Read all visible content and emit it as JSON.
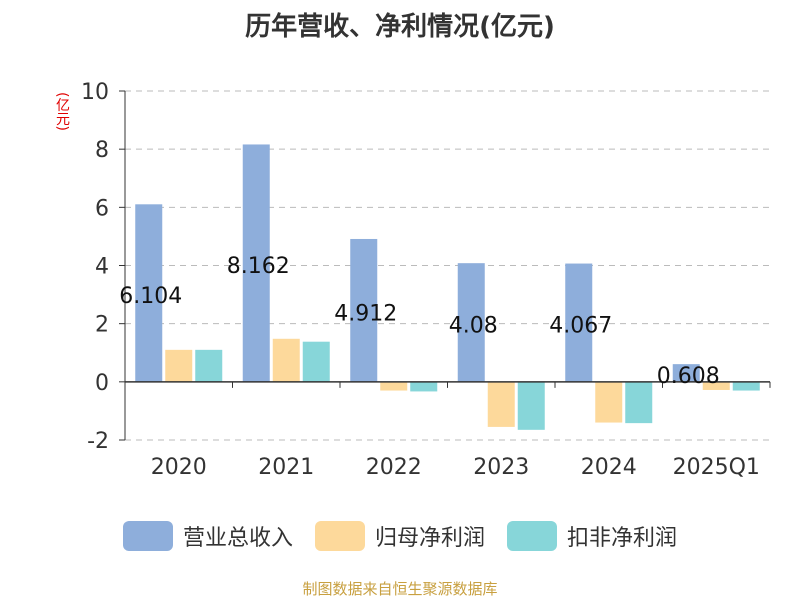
{
  "title": "历年营收、净利情况(亿元)",
  "unit": "(亿元)",
  "source": "制图数据来自恒生聚源数据库",
  "chart_data": {
    "type": "bar",
    "categories": [
      "2020",
      "2021",
      "2022",
      "2023",
      "2024",
      "2025Q1"
    ],
    "series": [
      {
        "name": "营业总收入",
        "color": "#8eaedb",
        "values": [
          6.104,
          8.162,
          4.912,
          4.08,
          4.067,
          0.608
        ]
      },
      {
        "name": "归母净利润",
        "color": "#fdd99b",
        "values": [
          1.1,
          1.48,
          -0.3,
          -1.55,
          -1.4,
          -0.28
        ]
      },
      {
        "name": "扣非净利润",
        "color": "#87d6d9",
        "values": [
          1.1,
          1.38,
          -0.33,
          -1.65,
          -1.42,
          -0.3
        ]
      }
    ],
    "data_labels": [
      "6.104",
      "8.162",
      "4.912",
      "4.08",
      "4.067",
      "0.608"
    ],
    "ylim": [
      -2,
      10
    ],
    "yticks": [
      -2,
      0,
      2,
      4,
      6,
      8,
      10
    ],
    "grid": true,
    "legend_position": "bottom"
  }
}
